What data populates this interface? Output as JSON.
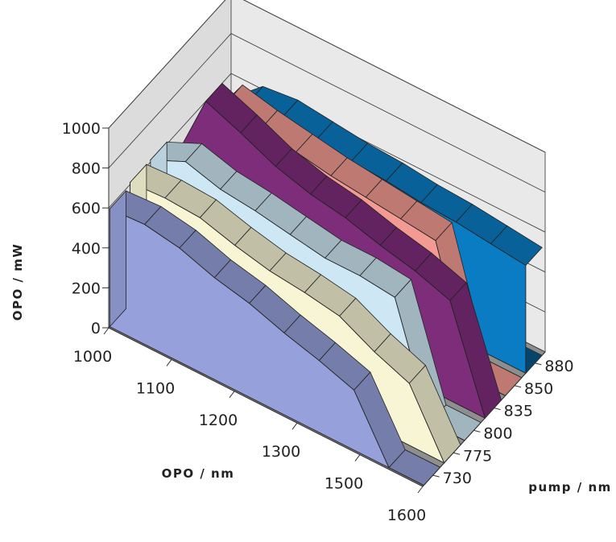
{
  "chart_data": {
    "type": "3d-area",
    "title": "",
    "zlabel": "OPO / mW",
    "xlabel": "OPO / nm",
    "ylabel": "pump / nm",
    "zlim": [
      0,
      1000
    ],
    "z_ticks": [
      "0",
      "200",
      "400",
      "600",
      "800",
      "1000"
    ],
    "x_ticks": [
      "1000",
      "1100",
      "1200",
      "1300",
      "1500",
      "1600"
    ],
    "y_ticks": [
      "730",
      "775",
      "800",
      "835",
      "850",
      "880"
    ],
    "grid": true,
    "series": [
      {
        "name": "730",
        "color": "#96a0da",
        "values": [
          590,
          600,
          570,
          510,
          470,
          410,
          360,
          300,
          0,
          0
        ]
      },
      {
        "name": "775",
        "color": "#f7f5d4",
        "values": [
          610,
          620,
          610,
          560,
          520,
          500,
          470,
          380,
          310,
          0
        ]
      },
      {
        "name": "800",
        "color": "#cde8f4",
        "values": [
          610,
          690,
          640,
          620,
          590,
          560,
          560,
          540,
          0,
          0
        ]
      },
      {
        "name": "835",
        "color": "#7e2d7b",
        "values": [
          470,
          880,
          810,
          730,
          680,
          650,
          600,
          560,
          500,
          0
        ]
      },
      {
        "name": "850",
        "color": "#f39b92",
        "values": [
          500,
          760,
          720,
          690,
          660,
          640,
          620,
          600,
          0,
          0
        ]
      },
      {
        "name": "880",
        "color": "#0a7cc4",
        "values": [
          490,
          640,
          660,
          640,
          620,
          610,
          590,
          580,
          560,
          540
        ]
      }
    ]
  }
}
